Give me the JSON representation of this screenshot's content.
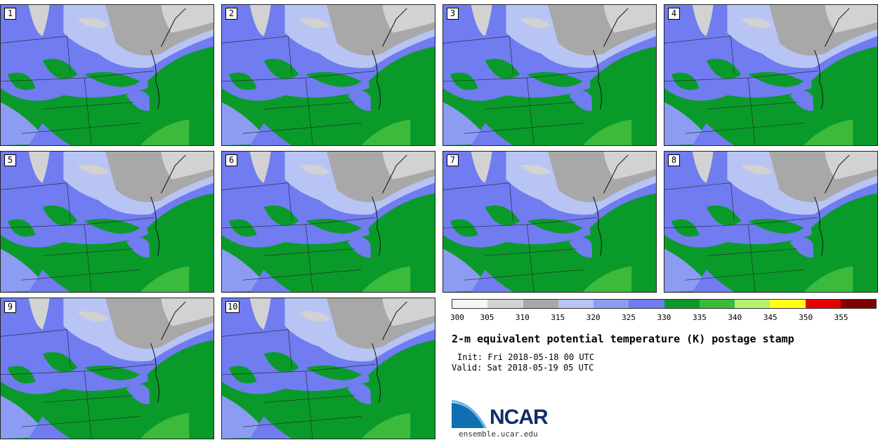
{
  "panels": [
    {
      "label": "1"
    },
    {
      "label": "2"
    },
    {
      "label": "3"
    },
    {
      "label": "4"
    },
    {
      "label": "5"
    },
    {
      "label": "6"
    },
    {
      "label": "7"
    },
    {
      "label": "8"
    },
    {
      "label": "9"
    },
    {
      "label": "10"
    }
  ],
  "colorbar": {
    "colors": [
      "#f5f5f5",
      "#d2d2d2",
      "#a8a8a8",
      "#b8c4f4",
      "#8c9cf2",
      "#707cf0",
      "#0a9a2a",
      "#3cba3c",
      "#b6f26c",
      "#ffff1a",
      "#e60000",
      "#800000"
    ],
    "tick_labels": [
      "300",
      "305",
      "310",
      "315",
      "320",
      "325",
      "330",
      "335",
      "340",
      "345",
      "350",
      "355"
    ]
  },
  "title": "2-m equivalent potential temperature (K) postage stamp",
  "init": "Init: Fri 2018-05-18 00 UTC",
  "valid": "Valid: Sat 2018-05-19 05 UTC",
  "logo": {
    "text": "NCAR",
    "url": "ensemble.ucar.edu",
    "color": "#0f6fb0"
  }
}
